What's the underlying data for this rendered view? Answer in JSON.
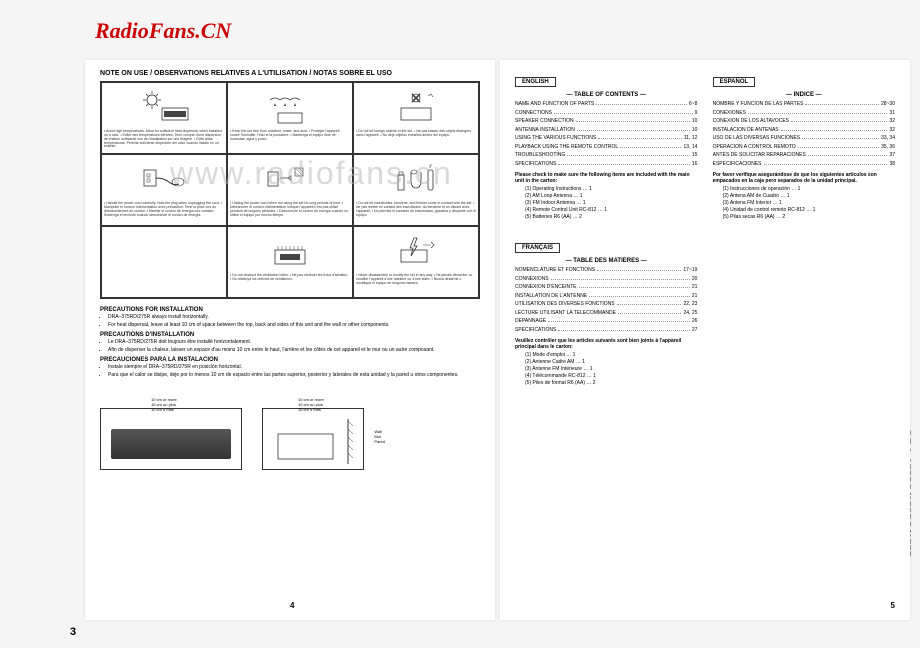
{
  "watermarks": {
    "top": "RadioFans.CN",
    "center": "www.radiofans.cn"
  },
  "spine": "DRA-375RD/275RD/275R",
  "left_page": {
    "title": "NOTE ON USE / OBSERVATIONS RELATIVES A L'UTILISATION / NOTAS SOBRE EL USO",
    "cells": [
      {
        "text": "• Avoid high temperatures.\nAllow for sufficient heat dispersion when installed on a rack.\n• Eviter des températures élevées.\nTenir compte d'une dispersion de chaleur suffisante lors de l'installation sur une étagère.\n• Evite altas temperaturas.\nPermita suficiente dispersión del calor cuando instale en un estante."
      },
      {
        "text": "• Keep the set free from moisture, water, and dust.\n• Protéger l'appareil contre l'humidité, l'eau et la poussière.\n• Mantenga el equipo libre de humedad, agua y polvo."
      },
      {
        "text": "• Do not let foreign objects in the set.\n• Ne pas laisser des objets étrangers dans l'appareil.\n• No deje objetos extraños dentro del equipo."
      },
      {
        "text": "• Handle the power cord carefully.\nHold the plug when unplugging the cord.\n• Manipuler le cordon d'alimentation avec précaution.\nTenir la prise lors du débranchement du cordon.\n• Maneje el cordón de energía con cuidado.\nSostenga el enchufe cuando desconecte el cordón de energía."
      },
      {
        "text": "• Unplug the power cord when not using the set for long periods of time.\n• Débrancher le cordon d'alimentation lorsque l'appareil n'est pas utilisé pendant de longues périodes.\n• Desconecte el cordón de energía cuando no utilice el equipo por mucho tiempo."
      },
      {
        "text": "• Do not let insecticides, benzene, and thinner come in contact with the set.\n• Ne pas mettre en contact des insecticides, du benzène et un diluant avec l'appareil.\n• No permita el contacto de insecticidas, gasolina y diluyente con el equipo."
      },
      {
        "text": ""
      },
      {
        "text": "• Do not obstruct the ventilation holes.\n• Ne pas obstruer les trous d'aération.\n• No obstruya los orificios de ventilación."
      },
      {
        "text": "• Never disassemble or modify the set in any way.\n• Ne jamais démonter ou modifier l'appareil d'une manière ou d'une autre.\n• Nunca desarme o modifique el equipo de ninguna manera."
      }
    ],
    "precautions": {
      "en_heading": "PRECAUTIONS FOR INSTALLATION",
      "en_items": [
        "DRA–375RD/275R always install horizontally.",
        "For heat dispersal, leave at least 10 cm of space between the top, back and sides of this unit and the wall or other components."
      ],
      "fr_heading": "PRECAUTIONS D'INSTALLATION",
      "fr_items": [
        "Le DRA–375RD/275R doit toujours être installé horizontalement.",
        "Afin de disperser la chaleur, laisser un espace d'au moins 10 cm entre le haut, l'arrière et les côtés de cet appareil et le mur ou un autre composant."
      ],
      "es_heading": "PRECAUCIONES PARA LA INSTALACION",
      "es_items": [
        "Instale siempre el DRA–375RD/275R en posición horizontal.",
        "Para que el calor se disipe, deje por lo menos 10 cm de espacio entre las partes superior, posterior y laterales de esta unidad y la pared u otros componentes."
      ]
    },
    "clearance": {
      "top": "10 cm or more\n10 cm ou plus\n10 cm o más",
      "side": "Wall\nMur\nPared"
    },
    "page_number": "4"
  },
  "page_3_number": "3",
  "right_page": {
    "english": {
      "badge": "ENGLISH",
      "heading": "— TABLE OF CONTENTS —",
      "items": [
        {
          "label": "NAME AND FUNCTION OF PARTS",
          "pages": "6~8"
        },
        {
          "label": "CONNECTIONS",
          "pages": "9"
        },
        {
          "label": "SPEAKER CONNECTION",
          "pages": "10"
        },
        {
          "label": "ANTENNA INSTALLATION",
          "pages": "10"
        },
        {
          "label": "USING THE VARIOUS FUNCTIONS",
          "pages": "11, 12"
        },
        {
          "label": "PLAYBACK USING THE REMOTE CONTROL",
          "pages": "13, 14"
        },
        {
          "label": "TROUBLESHOOTING",
          "pages": "15"
        },
        {
          "label": "SPECIFICATIONS",
          "pages": "16"
        }
      ],
      "carton_note": "Please check to make sure the following items are included with the main unit in the carton:",
      "carton_items": [
        "(1) Operating Instructions … 1",
        "(2) AM Loop Antenna … 1",
        "(3) FM Indoor Antenna … 1",
        "(4) Remote Control Unit RC-812 … 1",
        "(5) Batteries R6 (AA) … 2"
      ]
    },
    "espanol": {
      "badge": "ESPAÑOL",
      "heading": "— INDICE —",
      "items": [
        {
          "label": "NOMBRE Y FUNCION DE LAS PARTES",
          "pages": "28~30"
        },
        {
          "label": "CONEXIONES",
          "pages": "31"
        },
        {
          "label": "CONEXION DE LOS ALTAVOCES",
          "pages": "32"
        },
        {
          "label": "INSTALACION DE ANTENAS",
          "pages": "32"
        },
        {
          "label": "USO DE LAS DIVERSAS FUNCIONES",
          "pages": "33, 34"
        },
        {
          "label": "OPERACION A CONTROL REMOTO",
          "pages": "35, 36"
        },
        {
          "label": "ANTES DE SOLICITAR REPARACIONES",
          "pages": "37"
        },
        {
          "label": "ESPECIFICACIONES",
          "pages": "38"
        }
      ],
      "carton_note": "Por favor verifique asegurándose de que los siguientes artículos son empacados en la caja pero separados de la unidad principal.",
      "carton_items": [
        "(1) Instrucciones de operación … 1",
        "(2) Antena AM de Cuadro … 1",
        "(3) Antena FM Interior … 1",
        "(4) Unidad de control remoto RC-812 … 1",
        "(5) Pilas secas R6 (AA) … 2"
      ]
    },
    "francais": {
      "badge": "FRANÇAIS",
      "heading": "— TABLE DES MATIERES —",
      "items": [
        {
          "label": "NOMENCLATURE ET FONCTIONS",
          "pages": "17~19"
        },
        {
          "label": "CONNEXIONS",
          "pages": "20"
        },
        {
          "label": "CONNEXION D'ENCEINTE",
          "pages": "21"
        },
        {
          "label": "INSTALLATION DE L'ANTENNE",
          "pages": "21"
        },
        {
          "label": "UTILISATION DES DIVERSES FONCTIONS",
          "pages": "22, 23"
        },
        {
          "label": "LECTURE UTILISANT LA TELECOMMANDE",
          "pages": "24, 25"
        },
        {
          "label": "DEPANNAGE",
          "pages": "26"
        },
        {
          "label": "SPECIFICATIONS",
          "pages": "27"
        }
      ],
      "carton_note": "Veuillez contrôler que les articles suivants sont bien joints à l'appareil principal dans le carton:",
      "carton_items": [
        "(1) Mode d'emploi … 1",
        "(2) Antenne Cadre AM … 1",
        "(3) Antenne FM Intérieure … 1",
        "(4) Télécommande RC-812 … 1",
        "(5) Piles de format R6 (AA) … 2"
      ]
    },
    "page_number": "5"
  }
}
